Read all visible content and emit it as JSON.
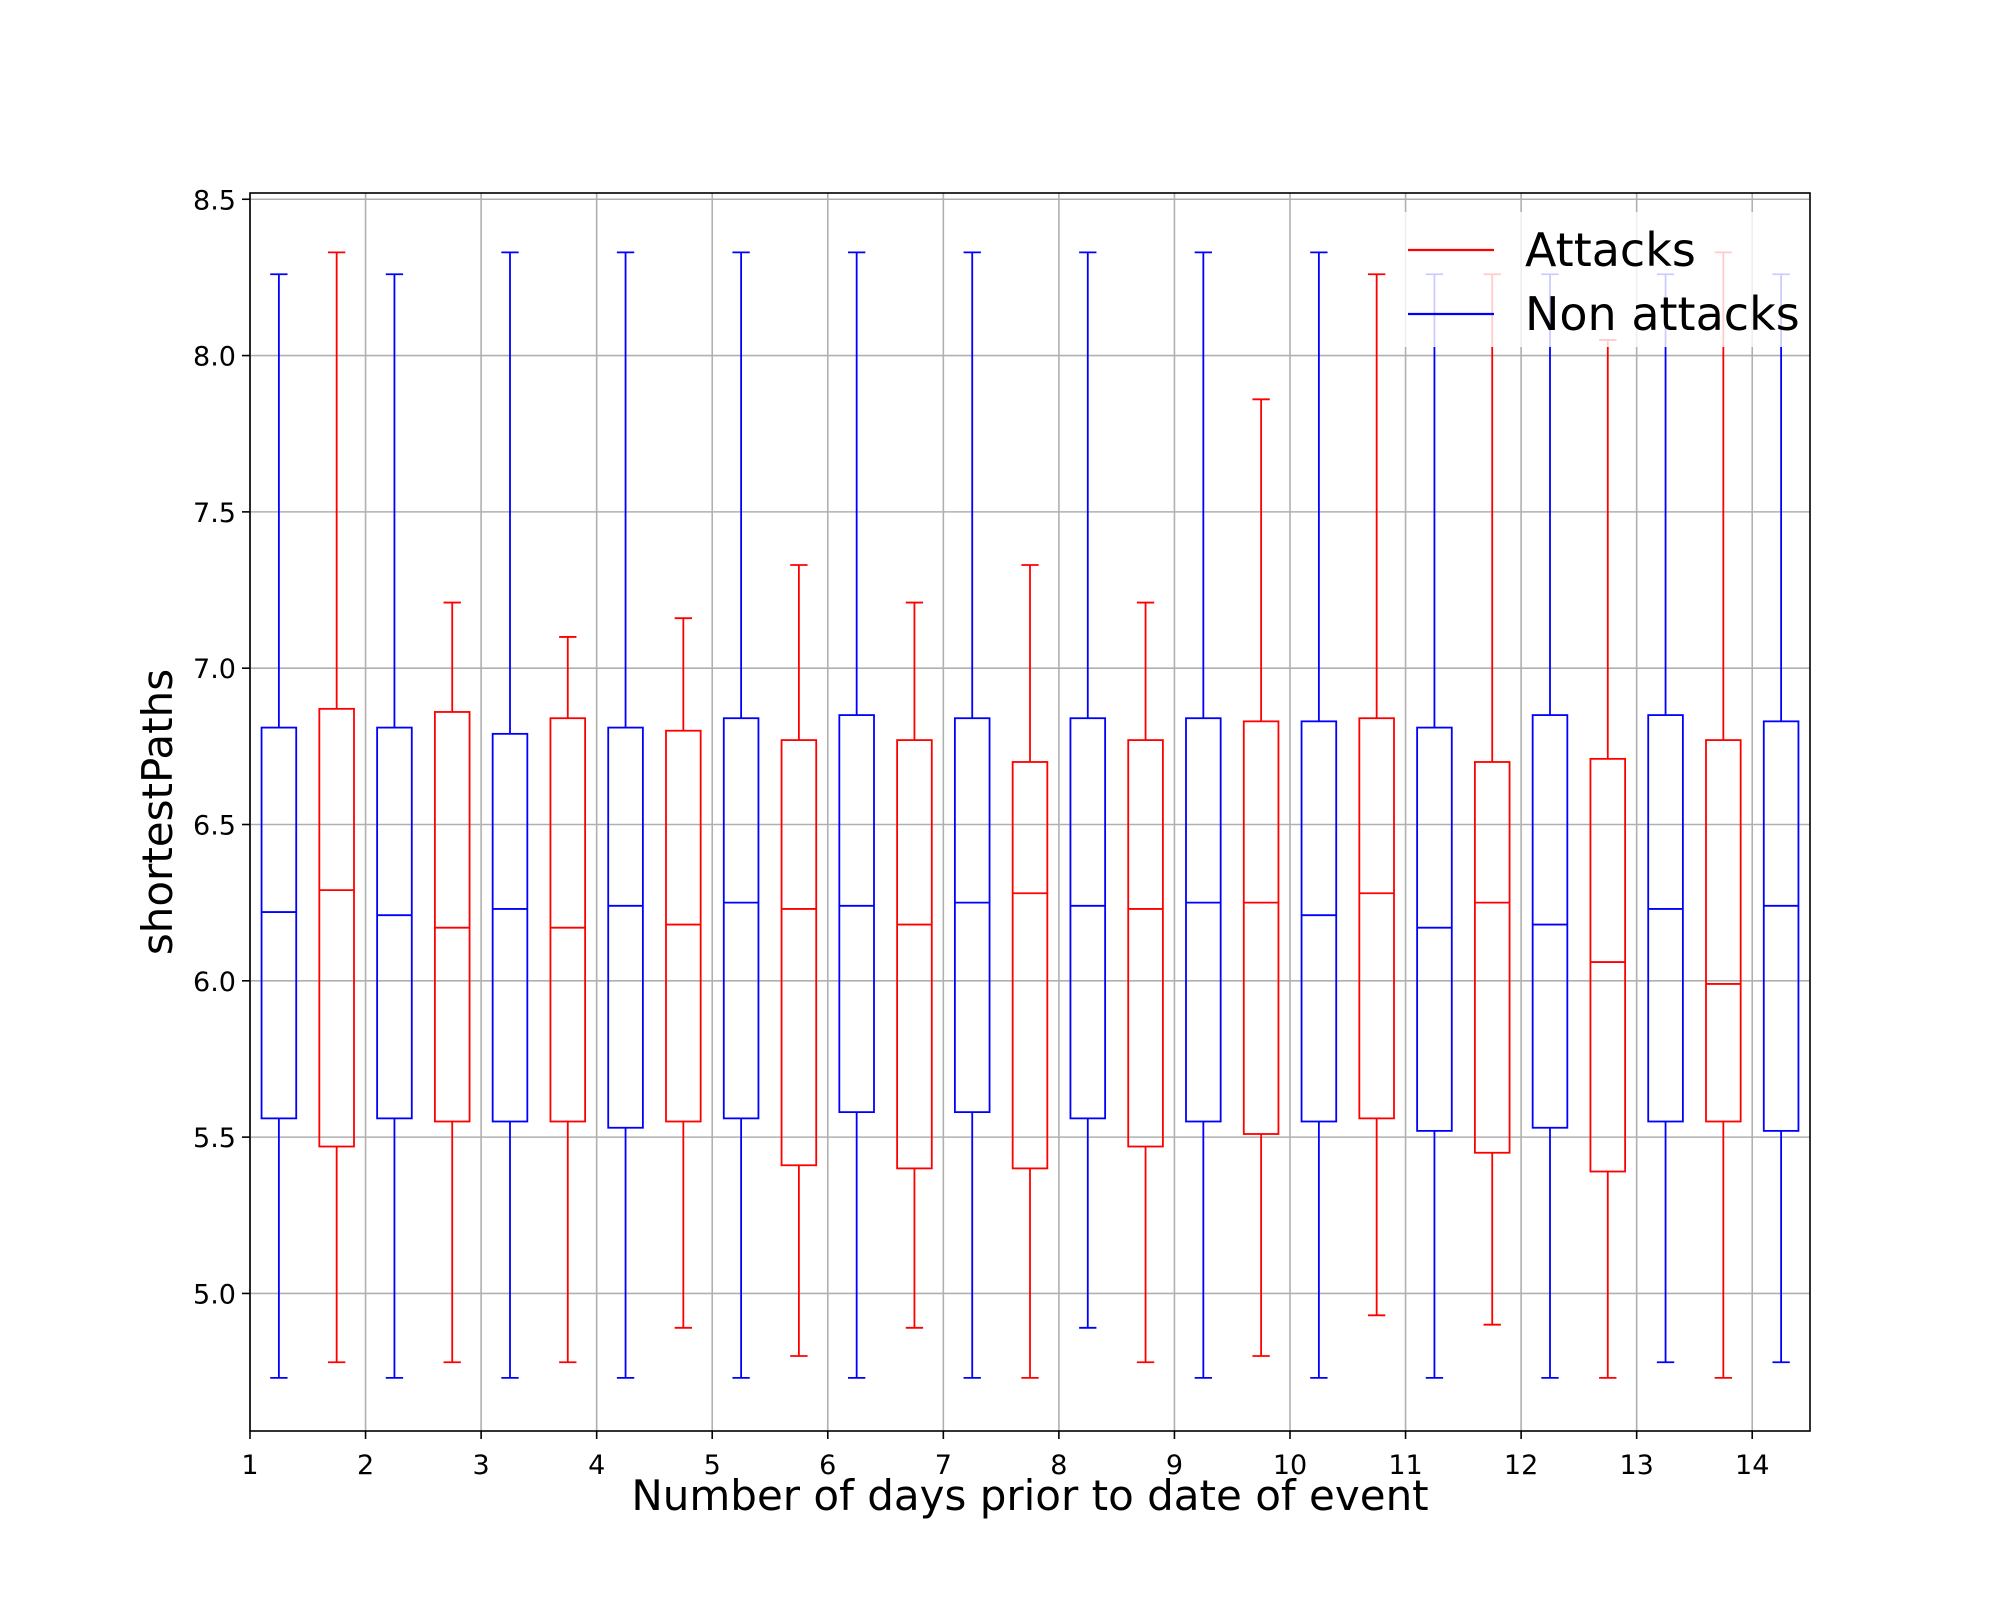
{
  "chart_data": {
    "type": "boxplot",
    "xlabel": "Number of days prior to date of event",
    "ylabel": "shortestPaths",
    "xlim": [
      1,
      14.5
    ],
    "ylim": [
      4.56,
      8.52
    ],
    "x_ticks": [
      "1",
      "2",
      "3",
      "4",
      "5",
      "6",
      "7",
      "8",
      "9",
      "10",
      "11",
      "12",
      "13",
      "14"
    ],
    "y_ticks": [
      5.0,
      5.5,
      6.0,
      6.5,
      7.0,
      7.5,
      8.0,
      8.5
    ],
    "y_tick_labels": [
      "5.0",
      "5.5",
      "6.0",
      "6.5",
      "7.0",
      "7.5",
      "8.0",
      "8.5"
    ],
    "grid": true,
    "legend_position": "upper-right",
    "series": [
      {
        "name": "Attacks",
        "color": "#ff0000",
        "boxes": [
          {
            "x": 1.75,
            "whislo": 4.78,
            "q1": 5.47,
            "med": 6.29,
            "q3": 6.87,
            "whishi": 8.33
          },
          {
            "x": 2.75,
            "whislo": 4.78,
            "q1": 5.55,
            "med": 6.17,
            "q3": 6.86,
            "whishi": 7.21
          },
          {
            "x": 3.75,
            "whislo": 4.78,
            "q1": 5.55,
            "med": 6.17,
            "q3": 6.84,
            "whishi": 7.1
          },
          {
            "x": 4.75,
            "whislo": 4.89,
            "q1": 5.55,
            "med": 6.18,
            "q3": 6.8,
            "whishi": 7.16
          },
          {
            "x": 5.75,
            "whislo": 4.8,
            "q1": 5.41,
            "med": 6.23,
            "q3": 6.77,
            "whishi": 7.33
          },
          {
            "x": 6.75,
            "whislo": 4.89,
            "q1": 5.4,
            "med": 6.18,
            "q3": 6.77,
            "whishi": 7.21
          },
          {
            "x": 7.75,
            "whislo": 4.73,
            "q1": 5.4,
            "med": 6.28,
            "q3": 6.7,
            "whishi": 7.33
          },
          {
            "x": 8.75,
            "whislo": 4.78,
            "q1": 5.47,
            "med": 6.23,
            "q3": 6.77,
            "whishi": 7.21
          },
          {
            "x": 9.75,
            "whislo": 4.8,
            "q1": 5.51,
            "med": 6.25,
            "q3": 6.83,
            "whishi": 7.86
          },
          {
            "x": 10.75,
            "whislo": 4.93,
            "q1": 5.56,
            "med": 6.28,
            "q3": 6.84,
            "whishi": 8.26
          },
          {
            "x": 11.75,
            "whislo": 4.9,
            "q1": 5.45,
            "med": 6.25,
            "q3": 6.7,
            "whishi": 8.26
          },
          {
            "x": 12.75,
            "whislo": 4.73,
            "q1": 5.39,
            "med": 6.06,
            "q3": 6.71,
            "whishi": 8.05
          },
          {
            "x": 13.75,
            "whislo": 4.73,
            "q1": 5.55,
            "med": 5.99,
            "q3": 6.77,
            "whishi": 8.33
          }
        ]
      },
      {
        "name": "Non attacks",
        "color": "#0000ff",
        "boxes": [
          {
            "x": 1.25,
            "whislo": 4.73,
            "q1": 5.56,
            "med": 6.22,
            "q3": 6.81,
            "whishi": 8.26
          },
          {
            "x": 2.25,
            "whislo": 4.73,
            "q1": 5.56,
            "med": 6.21,
            "q3": 6.81,
            "whishi": 8.26
          },
          {
            "x": 3.25,
            "whislo": 4.73,
            "q1": 5.55,
            "med": 6.23,
            "q3": 6.79,
            "whishi": 8.33
          },
          {
            "x": 4.25,
            "whislo": 4.73,
            "q1": 5.53,
            "med": 6.24,
            "q3": 6.81,
            "whishi": 8.33
          },
          {
            "x": 5.25,
            "whislo": 4.73,
            "q1": 5.56,
            "med": 6.25,
            "q3": 6.84,
            "whishi": 8.33
          },
          {
            "x": 6.25,
            "whislo": 4.73,
            "q1": 5.58,
            "med": 6.24,
            "q3": 6.85,
            "whishi": 8.33
          },
          {
            "x": 7.25,
            "whislo": 4.73,
            "q1": 5.58,
            "med": 6.25,
            "q3": 6.84,
            "whishi": 8.33
          },
          {
            "x": 8.25,
            "whislo": 4.89,
            "q1": 5.56,
            "med": 6.24,
            "q3": 6.84,
            "whishi": 8.33
          },
          {
            "x": 9.25,
            "whislo": 4.73,
            "q1": 5.55,
            "med": 6.25,
            "q3": 6.84,
            "whishi": 8.33
          },
          {
            "x": 10.25,
            "whislo": 4.73,
            "q1": 5.55,
            "med": 6.21,
            "q3": 6.83,
            "whishi": 8.33
          },
          {
            "x": 11.25,
            "whislo": 4.73,
            "q1": 5.52,
            "med": 6.17,
            "q3": 6.81,
            "whishi": 8.26
          },
          {
            "x": 12.25,
            "whislo": 4.73,
            "q1": 5.53,
            "med": 6.18,
            "q3": 6.85,
            "whishi": 8.26
          },
          {
            "x": 13.25,
            "whislo": 4.78,
            "q1": 5.55,
            "med": 6.23,
            "q3": 6.85,
            "whishi": 8.26
          },
          {
            "x": 14.25,
            "whislo": 4.78,
            "q1": 5.52,
            "med": 6.24,
            "q3": 6.83,
            "whishi": 8.26
          }
        ]
      }
    ]
  }
}
